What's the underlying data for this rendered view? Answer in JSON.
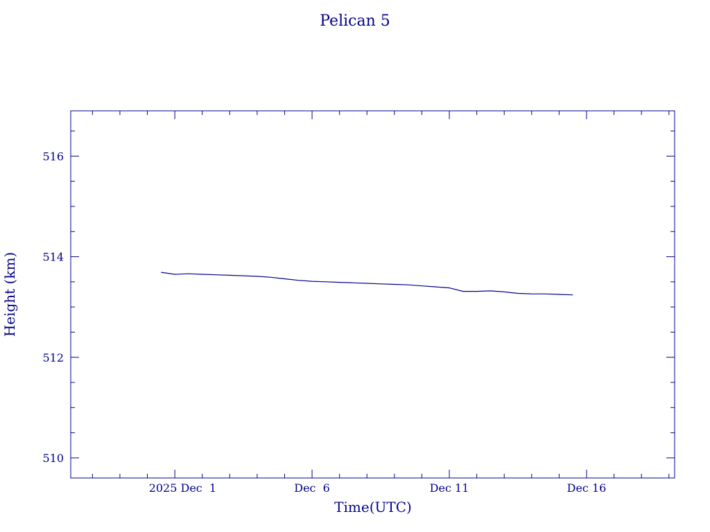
{
  "chart_data": {
    "type": "line",
    "title": "Pelican 5",
    "xlabel": "Time(UTC)",
    "ylabel": "Height (km)",
    "xlim": [
      "2025-11-27T05:00",
      "2025-12-19T05:00"
    ],
    "ylim": [
      509.6,
      516.9
    ],
    "x_ticks": [
      {
        "label": "2025 Dec  1",
        "value": "2025-12-01"
      },
      {
        "label": "Dec  6",
        "value": "2025-12-06"
      },
      {
        "label": "Dec 11",
        "value": "2025-12-11"
      },
      {
        "label": "Dec 16",
        "value": "2025-12-16"
      }
    ],
    "y_ticks": [
      510,
      512,
      514,
      516
    ],
    "grid": false,
    "series": [
      {
        "x": [
          "2025-11-30T12:00",
          "2025-12-01T00:00",
          "2025-12-01T12:00",
          "2025-12-02T00:00",
          "2025-12-02T12:00",
          "2025-12-03T00:00",
          "2025-12-03T12:00",
          "2025-12-04T00:00",
          "2025-12-04T12:00",
          "2025-12-05T00:00",
          "2025-12-05T12:00",
          "2025-12-06T00:00",
          "2025-12-06T12:00",
          "2025-12-07T00:00",
          "2025-12-07T12:00",
          "2025-12-08T00:00",
          "2025-12-08T12:00",
          "2025-12-09T00:00",
          "2025-12-09T12:00",
          "2025-12-10T00:00",
          "2025-12-10T12:00",
          "2025-12-11T00:00",
          "2025-12-11T12:00",
          "2025-12-12T00:00",
          "2025-12-12T12:00",
          "2025-12-13T00:00",
          "2025-12-13T12:00",
          "2025-12-14T00:00",
          "2025-12-14T12:00",
          "2025-12-15T00:00",
          "2025-12-15T12:00"
        ],
        "y": [
          513.69,
          513.65,
          513.66,
          513.65,
          513.64,
          513.63,
          513.62,
          513.61,
          513.59,
          513.56,
          513.53,
          513.51,
          513.5,
          513.49,
          513.48,
          513.47,
          513.46,
          513.45,
          513.44,
          513.42,
          513.4,
          513.38,
          513.31,
          513.31,
          513.32,
          513.3,
          513.27,
          513.26,
          513.26,
          513.25,
          513.24
        ]
      }
    ]
  }
}
